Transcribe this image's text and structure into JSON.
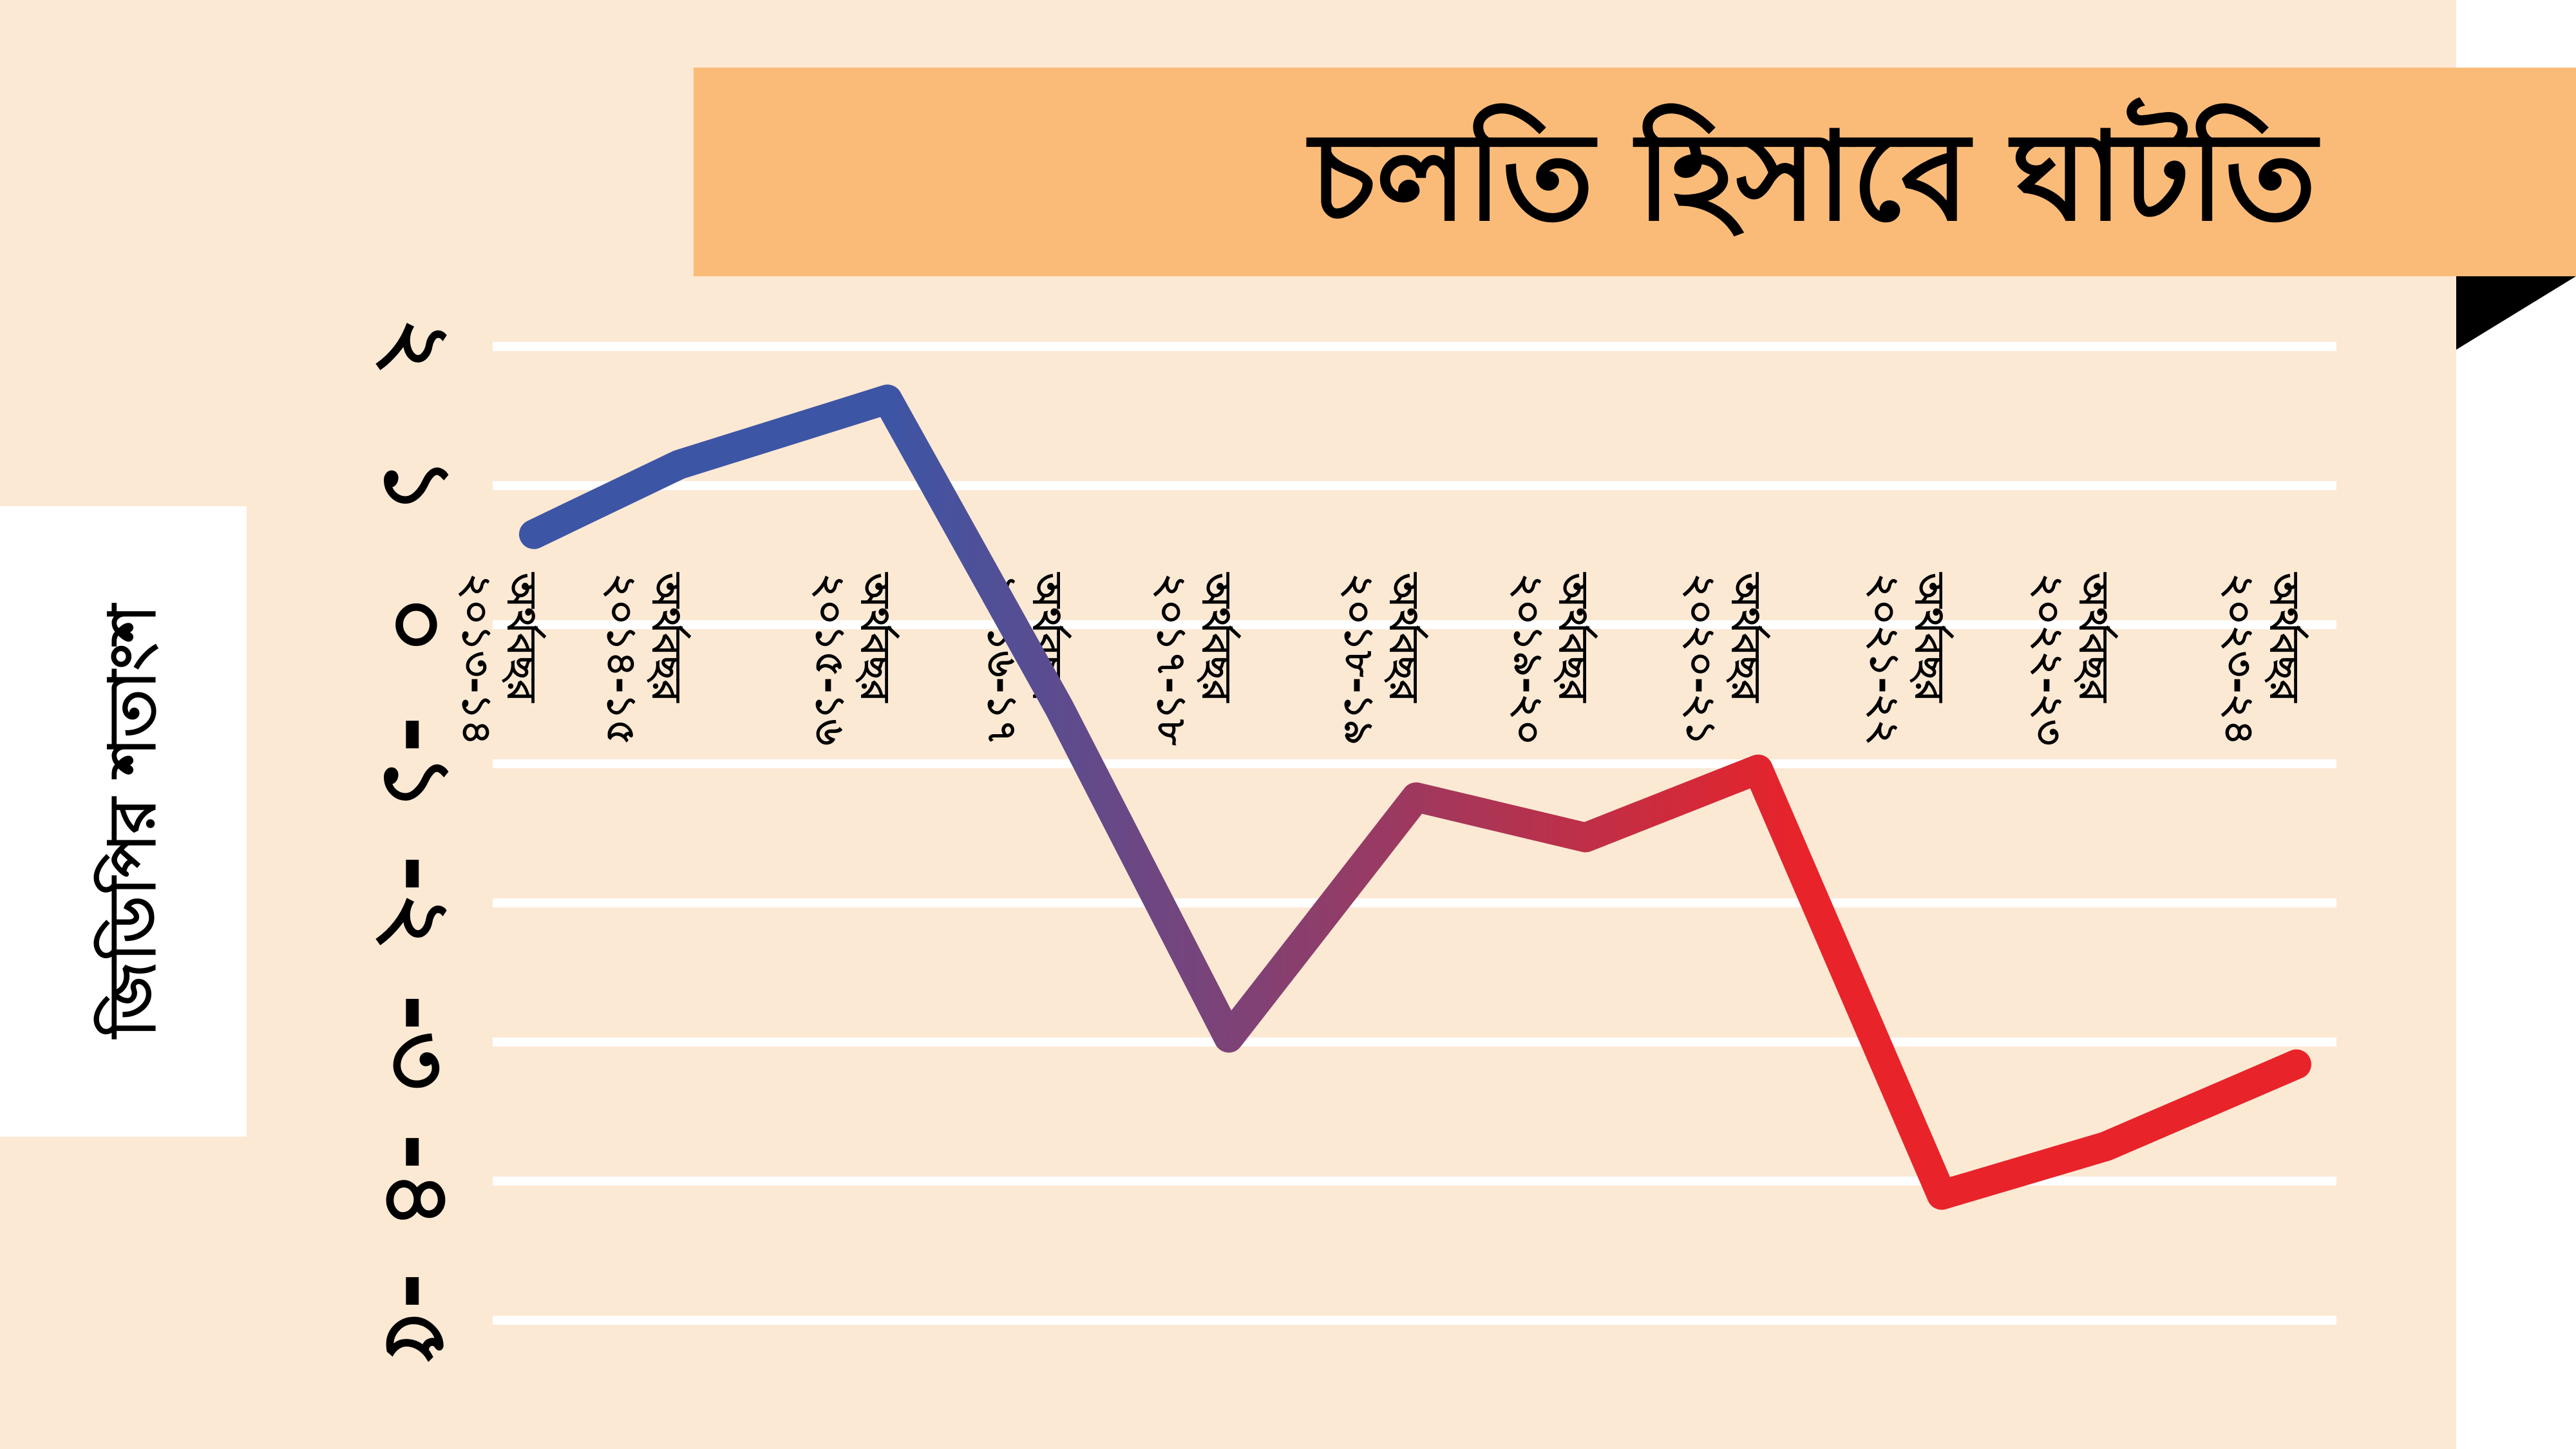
{
  "chart_data": {
    "type": "line",
    "title": "চলতি হিসাবে ঘাটতি",
    "ylabel": "জিডিপির শতাংশ",
    "xlabel": "",
    "categories": [
      [
        "অর্থবছর",
        "২০১৩-১৪"
      ],
      [
        "অর্থবছর",
        "২০১৪-১৫"
      ],
      [
        "অর্থবছর",
        "২০১৫-১৬"
      ],
      [
        "অর্থবছর",
        "২০১৬-১৭"
      ],
      [
        "অর্থবছর",
        "২০১৭-১৮"
      ],
      [
        "অর্থবছর",
        "২০১৮-১৯"
      ],
      [
        "অর্থবছর",
        "২০১৯-২০"
      ],
      [
        "অর্থবছর",
        "২০২০-২১"
      ],
      [
        "অর্থবছর",
        "২০২১-২২"
      ],
      [
        "অর্থবছর",
        "২০২২-২৩"
      ],
      [
        "অর্থবছর",
        "২০২৩-২৪"
      ]
    ],
    "values": [
      0.65,
      1.15,
      1.62,
      -0.6,
      -2.97,
      -1.24,
      -1.53,
      -1.04,
      -4.1,
      -3.75,
      -3.16
    ],
    "ylim": [
      -5,
      2
    ],
    "yticks": [
      {
        "value": 2,
        "label": "২"
      },
      {
        "value": 1,
        "label": "১"
      },
      {
        "value": 0,
        "label": "০"
      },
      {
        "value": -1,
        "label": "-১"
      },
      {
        "value": -2,
        "label": "-২"
      },
      {
        "value": -3,
        "label": "-৩"
      },
      {
        "value": -4,
        "label": "-৪"
      },
      {
        "value": -5,
        "label": "-৫"
      }
    ],
    "grid": true,
    "line_gradient": [
      "#3d55a5",
      "#e8232a"
    ]
  },
  "colors": {
    "background": "#fce9d4",
    "title_banner": "#fbbb78",
    "gridline": "#ffffff"
  }
}
